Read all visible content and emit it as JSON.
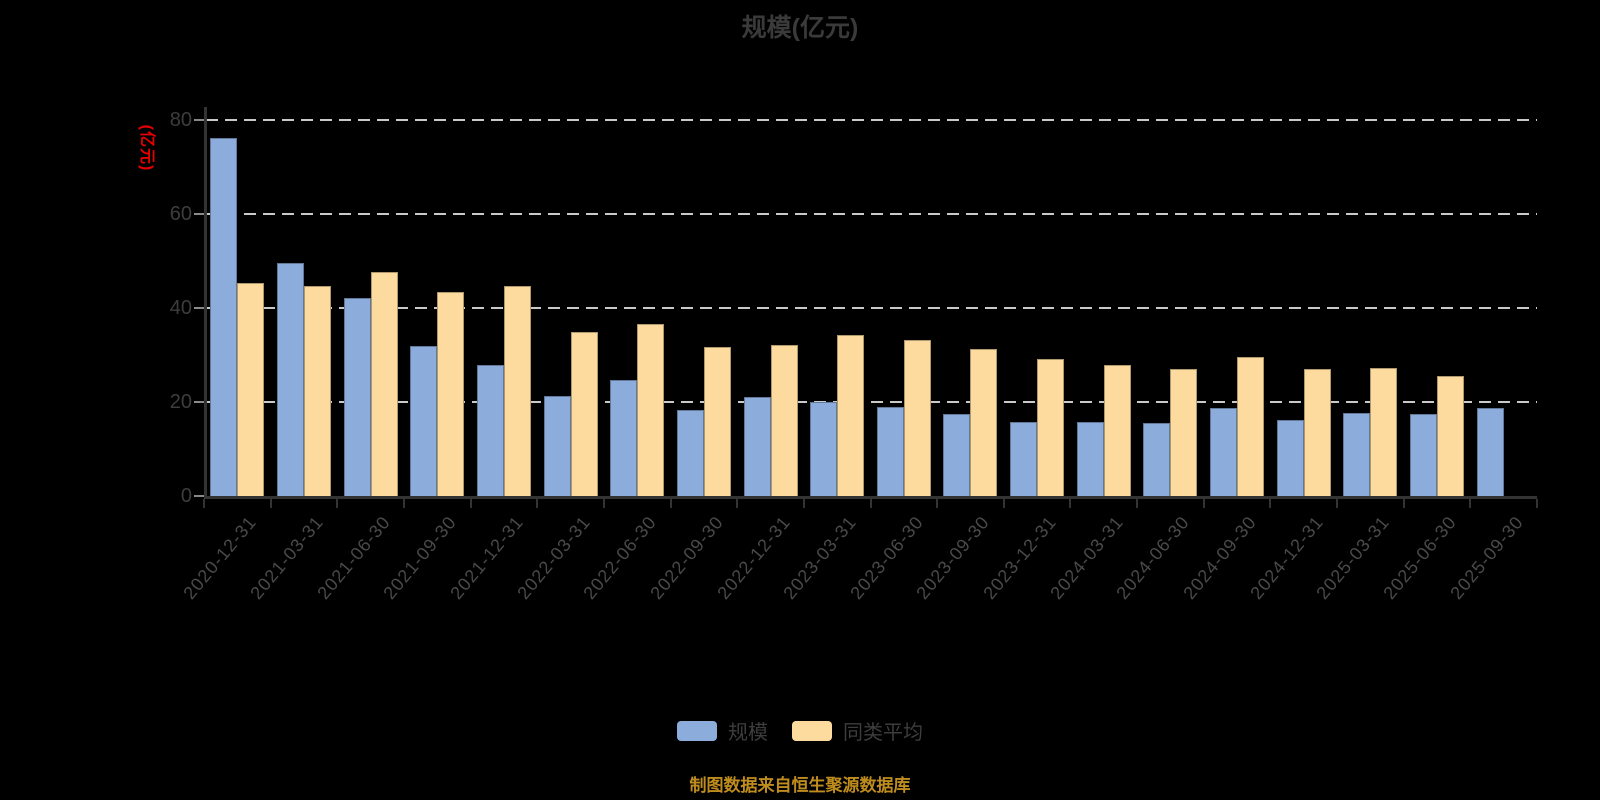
{
  "title": "规模(亿元)",
  "chart_data": {
    "type": "bar",
    "title": "规模(亿元)",
    "xlabel": "",
    "ylabel": "(亿元)",
    "ylabel_color": "#e60000",
    "ylim": [
      0,
      80
    ],
    "yticks": [
      0,
      20,
      40,
      60,
      80
    ],
    "grid": "horizontal dashed gridlines on black background",
    "legend_position": "bottom",
    "categories": [
      "2020-12-31",
      "2021-03-31",
      "2021-06-30",
      "2021-09-30",
      "2021-12-31",
      "2022-03-31",
      "2022-06-30",
      "2022-09-30",
      "2022-12-31",
      "2023-03-31",
      "2023-06-30",
      "2023-09-30",
      "2023-12-31",
      "2024-03-31",
      "2024-06-30",
      "2024-09-30",
      "2024-12-31",
      "2025-03-31",
      "2025-06-30",
      "2025-09-30"
    ],
    "series": [
      {
        "name": "规模",
        "color": "#8cacdc",
        "values": [
          76.2,
          49.5,
          42.1,
          32.0,
          27.9,
          21.3,
          24.7,
          18.4,
          21.1,
          20.1,
          18.9,
          17.4,
          15.8,
          15.8,
          15.5,
          18.7,
          16.2,
          17.7,
          17.4,
          18.8
        ]
      },
      {
        "name": "同类平均",
        "color": "#fdda9e",
        "values": [
          45.4,
          44.7,
          47.7,
          43.5,
          44.7,
          35.0,
          36.7,
          31.8,
          32.1,
          34.3,
          33.2,
          31.2,
          29.1,
          27.9,
          27.0,
          29.6,
          27.0,
          27.2,
          25.5,
          null
        ]
      }
    ]
  },
  "legend": {
    "items": [
      {
        "label": "规模",
        "color": "#8cacdc"
      },
      {
        "label": "同类平均",
        "color": "#fdda9e"
      }
    ]
  },
  "footer": {
    "source_text": "制图数据来自恒生聚源数据库",
    "color": "#bf8c1e"
  },
  "colors": {
    "background": "#000000",
    "title_text": "#3a3a3a",
    "axis_line": "#333333",
    "tick_label": "#3d3d3d",
    "gridline": "#c9c9c9",
    "bar_scale": "#8cacdc",
    "bar_peer_average": "#fdda9e",
    "y_axis_name": "#e60000",
    "source_text": "#bf8c1e"
  }
}
